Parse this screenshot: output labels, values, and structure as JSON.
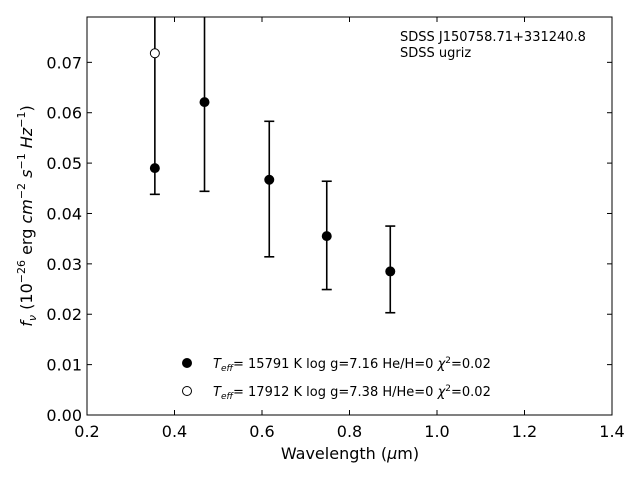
{
  "chart_data": {
    "type": "scatter",
    "xlabel": "Wavelength (μm)",
    "ylabel": "f_ν (10^-26 erg cm^-2 s^-1 Hz^-1)",
    "xlim": [
      0.2,
      1.4
    ],
    "ylim": [
      0.0,
      0.079
    ],
    "xticks": [
      "0.2",
      "0.4",
      "0.6",
      "0.8",
      "1.0",
      "1.2",
      "1.4"
    ],
    "yticks": [
      "0.00",
      "0.01",
      "0.02",
      "0.03",
      "0.04",
      "0.05",
      "0.06",
      "0.07"
    ],
    "grid": false,
    "annotation": [
      "SDSS J150758.71+331240.8",
      "SDSS ugriz"
    ],
    "legend_position": "lower-center",
    "observed": {
      "x": [
        0.3551,
        0.4686,
        0.6166,
        0.748,
        0.8932
      ],
      "y": [
        0.049,
        0.0621,
        0.0467,
        0.0355,
        0.0285
      ],
      "err_low": [
        0.0052,
        0.0177,
        0.0153,
        0.0106,
        0.0082
      ],
      "err_high": [
        0.03,
        0.0169,
        0.0116,
        0.0109,
        0.009
      ]
    },
    "series": [
      {
        "name": "T_eff= 15791 K  log g=7.16  He/H=0  χ²=0.02",
        "marker": "filled",
        "x": [
          0.3551,
          0.4686,
          0.6166,
          0.748,
          0.8932
        ],
        "y": [
          0.049,
          0.0621,
          0.0467,
          0.0355,
          0.0285
        ]
      },
      {
        "name": "T_eff= 17912 K  log g=7.38  H/He=0  χ²=0.02",
        "marker": "open",
        "x": [
          0.3551
        ],
        "y": [
          0.0718
        ]
      }
    ],
    "legend": [
      {
        "teff_value": "= 15791 K  log g=7.16  He/H=0  ",
        "chi_value": "=0.02"
      },
      {
        "teff_value": "= 17912 K  log g=7.38  H/He=0  ",
        "chi_value": "=0.02"
      }
    ]
  }
}
